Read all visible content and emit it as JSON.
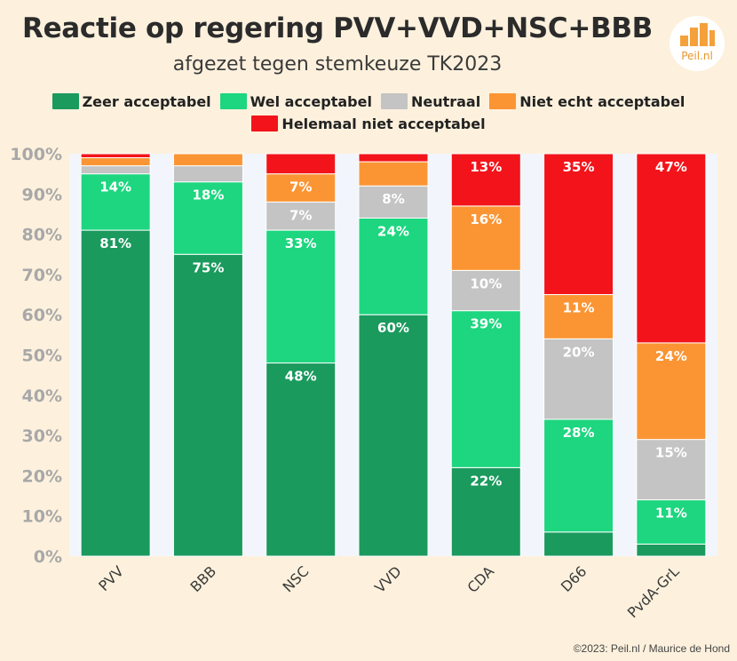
{
  "title": "Reactie op regering PVV+VVD+NSC+BBB",
  "subtitle": "afgezet tegen stemkeuze TK2023",
  "logo": {
    "text": "Peil.nl",
    "color": "#f4a13b"
  },
  "footer": "©2023: Peil.nl / Maurice de Hond",
  "chart_data": {
    "type": "bar",
    "stacked": true,
    "title": "Reactie op regering PVV+VVD+NSC+BBB",
    "subtitle": "afgezet tegen stemkeuze TK2023",
    "categories": [
      "PVV",
      "BBB",
      "NSC",
      "VVD",
      "CDA",
      "D66",
      "PvdA-GrL"
    ],
    "ylim": [
      0,
      100
    ],
    "yticks": [
      "0%",
      "10%",
      "20%",
      "30%",
      "40%",
      "50%",
      "60%",
      "70%",
      "80%",
      "90%",
      "100%"
    ],
    "grid": false,
    "legend_position": "top",
    "series": [
      {
        "name": "Zeer acceptabel",
        "color": "#1b9a5e",
        "values": [
          81,
          75,
          48,
          60,
          22,
          6,
          3
        ]
      },
      {
        "name": "Wel acceptabel",
        "color": "#1dd67f",
        "values": [
          14,
          18,
          33,
          24,
          39,
          28,
          11
        ]
      },
      {
        "name": "Neutraal",
        "color": "#c4c4c4",
        "values": [
          2,
          4,
          7,
          8,
          10,
          20,
          15
        ]
      },
      {
        "name": "Niet echt acceptabel",
        "color": "#fb9534",
        "values": [
          2,
          3,
          7,
          6,
          16,
          11,
          24
        ]
      },
      {
        "name": "Helemaal niet acceptabel",
        "color": "#f2141a",
        "values": [
          1,
          0,
          5,
          2,
          13,
          35,
          47
        ]
      }
    ],
    "data_labels": [
      [
        "81%",
        "75%",
        "48%",
        "60%",
        "22%",
        "",
        ""
      ],
      [
        "14%",
        "18%",
        "33%",
        "24%",
        "39%",
        "28%",
        "11%"
      ],
      [
        "",
        "",
        "7%",
        "8%",
        "10%",
        "20%",
        "15%"
      ],
      [
        "",
        "",
        "7%",
        "",
        "16%",
        "11%",
        "24%"
      ],
      [
        "",
        "",
        "",
        "",
        "13%",
        "35%",
        "47%"
      ]
    ]
  }
}
